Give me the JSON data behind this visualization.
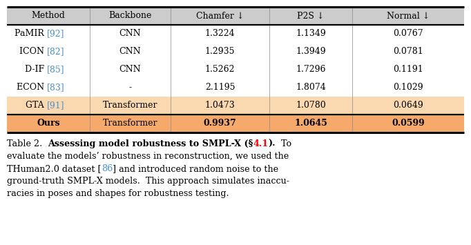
{
  "headers": [
    "Method",
    "Backbone",
    "Chamfer ↓",
    "P2S ↓",
    "Normal ↓"
  ],
  "rows": [
    [
      "PaMIR [92]",
      "CNN",
      "1.3224",
      "1.1349",
      "0.0767"
    ],
    [
      "ICON [82]",
      "CNN",
      "1.2935",
      "1.3949",
      "0.0781"
    ],
    [
      "D-IF [85]",
      "CNN",
      "1.5262",
      "1.7296",
      "0.1191"
    ],
    [
      "ECON [83]",
      "-",
      "2.1195",
      "1.8074",
      "0.1029"
    ],
    [
      "GTA [91]",
      "Transformer",
      "1.0473",
      "1.0780",
      "0.0649"
    ],
    [
      "Ours",
      "Transformer",
      "0.9937",
      "1.0645",
      "0.0599"
    ]
  ],
  "highlight_gta_color": "#FAD9B0",
  "highlight_ours_color": "#F5A96B",
  "header_bg": "#CCCCCC",
  "bg_color": "#FFFFFF",
  "ref_color": "#4A90D9",
  "method_ref_color": "#4A90D9",
  "figsize": [
    6.82,
    3.55
  ],
  "table_font_size": 9.0,
  "caption_font_size": 9.2
}
